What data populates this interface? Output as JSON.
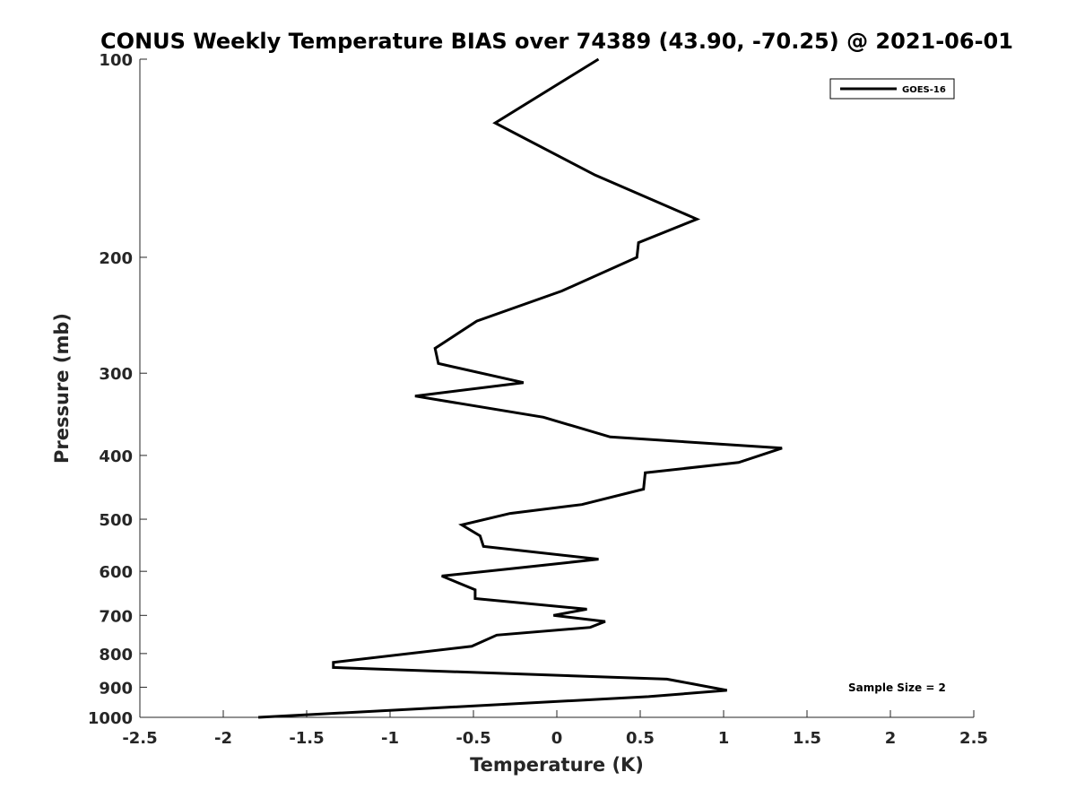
{
  "chart_data": {
    "type": "line",
    "title": "CONUS Weekly Temperature BIAS over 74389 (43.90, -70.25) @ 2021-06-01",
    "xlabel": "Temperature (K)",
    "ylabel": "Pressure (mb)",
    "xlim": [
      -2.5,
      2.5
    ],
    "ylim": [
      100,
      1000
    ],
    "y_scale": "log",
    "y_reversed": true,
    "x_ticks": [
      -2.5,
      -2,
      -1.5,
      -1,
      -0.5,
      0,
      0.5,
      1,
      1.5,
      2,
      2.5
    ],
    "x_tick_labels": [
      "-2.5",
      "-2",
      "-1.5",
      "-1",
      "-0.5",
      "0",
      "0.5",
      "1",
      "1.5",
      "2",
      "2.5"
    ],
    "y_ticks": [
      100,
      200,
      300,
      400,
      500,
      600,
      700,
      800,
      900,
      1000
    ],
    "y_tick_labels": [
      "100",
      "200",
      "300",
      "400",
      "500",
      "600",
      "700",
      "800",
      "900",
      "1000"
    ],
    "grid": false,
    "legend_position": "top-right",
    "line_color": "#000000",
    "series": [
      {
        "name": "GOES-16",
        "x": [
          0.25,
          -0.37,
          0.23,
          0.84,
          0.49,
          0.48,
          0.03,
          -0.48,
          -0.73,
          -0.71,
          -0.2,
          -0.85,
          -0.08,
          0.32,
          1.35,
          1.09,
          0.53,
          0.52,
          0.15,
          -0.28,
          -0.57,
          -0.46,
          -0.44,
          0.25,
          -0.15,
          -0.69,
          -0.49,
          -0.49,
          0.18,
          -0.02,
          0.29,
          0.2,
          -0.36,
          -0.51,
          -1.34,
          -1.34,
          0.66,
          0.82,
          1.02,
          0.55,
          -1.79
        ],
        "y": [
          100,
          125,
          150,
          175,
          190,
          200,
          225,
          250,
          275,
          290,
          310,
          325,
          350,
          375,
          390,
          410,
          425,
          450,
          475,
          490,
          510,
          530,
          550,
          575,
          590,
          610,
          640,
          660,
          685,
          700,
          715,
          730,
          750,
          780,
          825,
          840,
          875,
          890,
          910,
          930,
          1000
        ]
      }
    ],
    "annotation": "Sample Size = 2"
  }
}
